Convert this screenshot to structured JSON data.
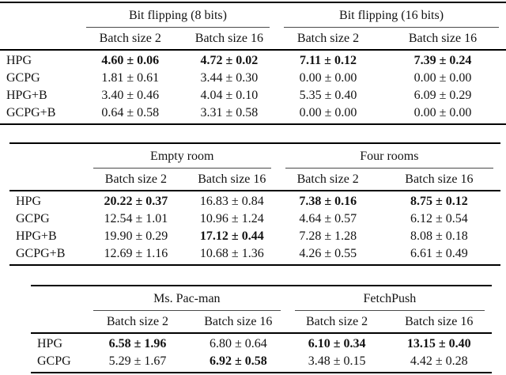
{
  "document": {
    "background": "#ffffff",
    "text_color": "#131313",
    "heavy_rule_color": "#000000",
    "light_rule_color": "#4a4a4a"
  },
  "tables": [
    {
      "name": "bit-flipping-results",
      "groups": [
        "Bit flipping (8 bits)",
        "Bit flipping (16 bits)"
      ],
      "subheaders": [
        "Batch size 2",
        "Batch size 16",
        "Batch size 2",
        "Batch size 16"
      ],
      "rows": [
        {
          "label": "HPG",
          "cells": [
            {
              "text": "4.60 ± 0.06",
              "bold": true
            },
            {
              "text": "4.72 ± 0.02",
              "bold": true
            },
            {
              "text": "7.11 ± 0.12",
              "bold": true
            },
            {
              "text": "7.39 ± 0.24",
              "bold": true
            }
          ]
        },
        {
          "label": "GCPG",
          "cells": [
            {
              "text": "1.81 ± 0.61",
              "bold": false
            },
            {
              "text": "3.44 ± 0.30",
              "bold": false
            },
            {
              "text": "0.00 ± 0.00",
              "bold": false
            },
            {
              "text": "0.00 ± 0.00",
              "bold": false
            }
          ]
        },
        {
          "label": "HPG+B",
          "cells": [
            {
              "text": "3.40 ± 0.46",
              "bold": false
            },
            {
              "text": "4.04 ± 0.10",
              "bold": false
            },
            {
              "text": "5.35 ± 0.40",
              "bold": false
            },
            {
              "text": "6.09 ± 0.29",
              "bold": false
            }
          ]
        },
        {
          "label": "GCPG+B",
          "cells": [
            {
              "text": "0.64 ± 0.58",
              "bold": false
            },
            {
              "text": "3.31 ± 0.58",
              "bold": false
            },
            {
              "text": "0.00 ± 0.00",
              "bold": false
            },
            {
              "text": "0.00 ± 0.00",
              "bold": false
            }
          ]
        }
      ]
    },
    {
      "name": "grid-world-results",
      "groups": [
        "Empty room",
        "Four rooms"
      ],
      "subheaders": [
        "Batch size 2",
        "Batch size 16",
        "Batch size 2",
        "Batch size 16"
      ],
      "rows": [
        {
          "label": "HPG",
          "cells": [
            {
              "text": "20.22 ± 0.37",
              "bold": true
            },
            {
              "text": "16.83 ± 0.84",
              "bold": false
            },
            {
              "text": "7.38 ± 0.16",
              "bold": true
            },
            {
              "text": "8.75 ± 0.12",
              "bold": true
            }
          ]
        },
        {
          "label": "GCPG",
          "cells": [
            {
              "text": "12.54 ± 1.01",
              "bold": false
            },
            {
              "text": "10.96 ± 1.24",
              "bold": false
            },
            {
              "text": "4.64 ± 0.57",
              "bold": false
            },
            {
              "text": "6.12 ± 0.54",
              "bold": false
            }
          ]
        },
        {
          "label": "HPG+B",
          "cells": [
            {
              "text": "19.90 ± 0.29",
              "bold": false
            },
            {
              "text": "17.12 ± 0.44",
              "bold": true
            },
            {
              "text": "7.28 ± 1.28",
              "bold": false
            },
            {
              "text": "8.08 ± 0.18",
              "bold": false
            }
          ]
        },
        {
          "label": "GCPG+B",
          "cells": [
            {
              "text": "12.69 ± 1.16",
              "bold": false
            },
            {
              "text": "10.68 ± 1.36",
              "bold": false
            },
            {
              "text": "4.26 ± 0.55",
              "bold": false
            },
            {
              "text": "6.61 ± 0.49",
              "bold": false
            }
          ]
        }
      ]
    },
    {
      "name": "pacman-fetchpush-results",
      "groups": [
        "Ms. Pac-man",
        "FetchPush"
      ],
      "subheaders": [
        "Batch size 2",
        "Batch size 16",
        "Batch size 2",
        "Batch size 16"
      ],
      "rows": [
        {
          "label": "HPG",
          "cells": [
            {
              "text": "6.58 ± 1.96",
              "bold": true
            },
            {
              "text": "6.80 ± 0.64",
              "bold": false
            },
            {
              "text": "6.10 ± 0.34",
              "bold": true
            },
            {
              "text": "13.15 ± 0.40",
              "bold": true
            }
          ]
        },
        {
          "label": "GCPG",
          "cells": [
            {
              "text": "5.29 ± 1.67",
              "bold": false
            },
            {
              "text": "6.92 ± 0.58",
              "bold": true
            },
            {
              "text": "3.48 ± 0.15",
              "bold": false
            },
            {
              "text": "4.42 ± 0.28",
              "bold": false
            }
          ]
        }
      ]
    }
  ]
}
